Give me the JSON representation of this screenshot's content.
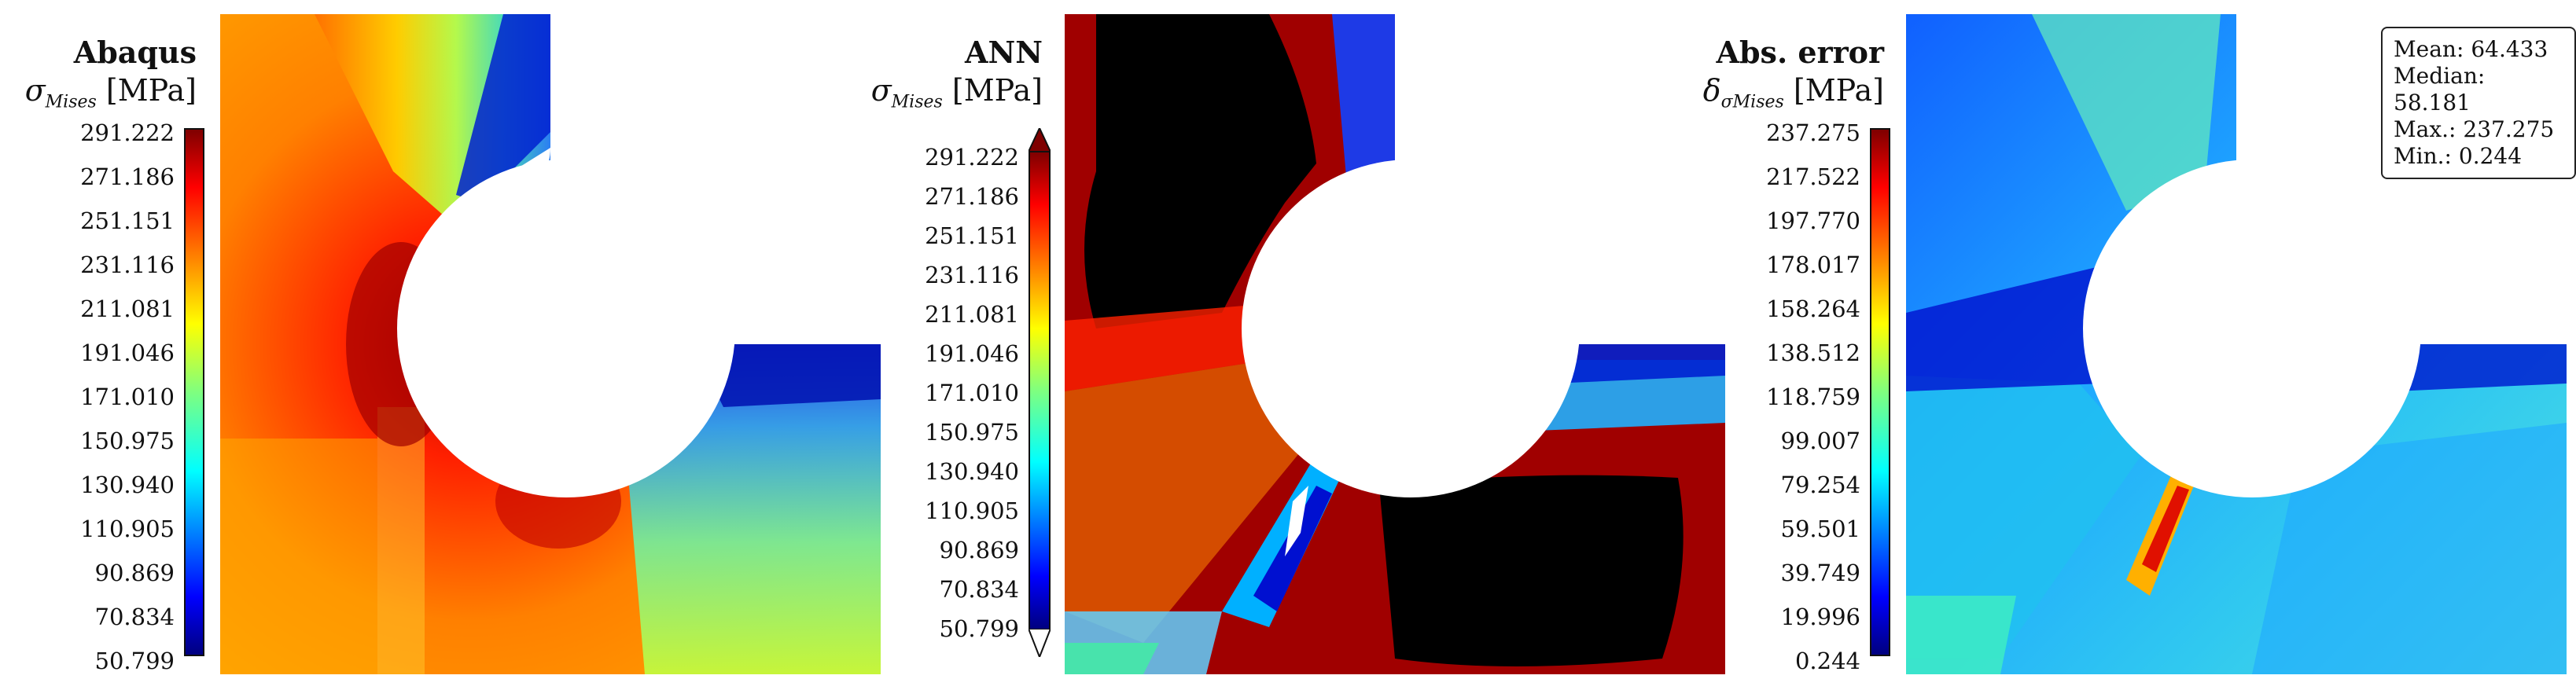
{
  "chart_data": [
    {
      "type": "heatmap",
      "title": "Abaqus",
      "colorbar_label": {
        "symbol": "σ",
        "subscript": "Mises",
        "unit": "[MPa]"
      },
      "colorbar_range": [
        50.799,
        291.222
      ],
      "colorbar_ticks": [
        "291.222",
        "271.186",
        "251.151",
        "231.116",
        "211.081",
        "191.046",
        "171.010",
        "150.975",
        "130.940",
        "110.905",
        "90.869",
        "70.834",
        "50.799"
      ],
      "colormap": "jet",
      "extend_arrows": false
    },
    {
      "type": "heatmap",
      "title": "ANN",
      "colorbar_label": {
        "symbol": "σ",
        "subscript": "Mises",
        "unit": "[MPa]"
      },
      "colorbar_range": [
        50.799,
        291.222
      ],
      "colorbar_ticks": [
        "291.222",
        "271.186",
        "251.151",
        "231.116",
        "211.081",
        "191.046",
        "171.010",
        "150.975",
        "130.940",
        "110.905",
        "90.869",
        "70.834",
        "50.799"
      ],
      "colormap": "jet",
      "extend_arrows": true
    },
    {
      "type": "heatmap",
      "title": "Abs. error",
      "colorbar_label": {
        "symbol": "δ",
        "subscript": "σMises",
        "unit": "[MPa]"
      },
      "colorbar_range": [
        0.244,
        237.275
      ],
      "colorbar_ticks": [
        "237.275",
        "217.522",
        "197.770",
        "178.017",
        "158.264",
        "138.512",
        "118.759",
        "99.007",
        "79.254",
        "59.501",
        "39.749",
        "19.996",
        "0.244"
      ],
      "colormap": "jet",
      "extend_arrows": false,
      "stats": {
        "mean_label": "Mean:",
        "mean": "64.433",
        "median_label": "Median:",
        "median": "58.181",
        "max_label": "Max.:",
        "max": "237.275",
        "min_label": "Min.:",
        "min": "0.244"
      }
    }
  ],
  "colors": {
    "jet": [
      "#00007f",
      "#0000ff",
      "#007fff",
      "#00ffff",
      "#7fff7f",
      "#ffff00",
      "#ff7f00",
      "#ff0000",
      "#7f0000"
    ]
  }
}
